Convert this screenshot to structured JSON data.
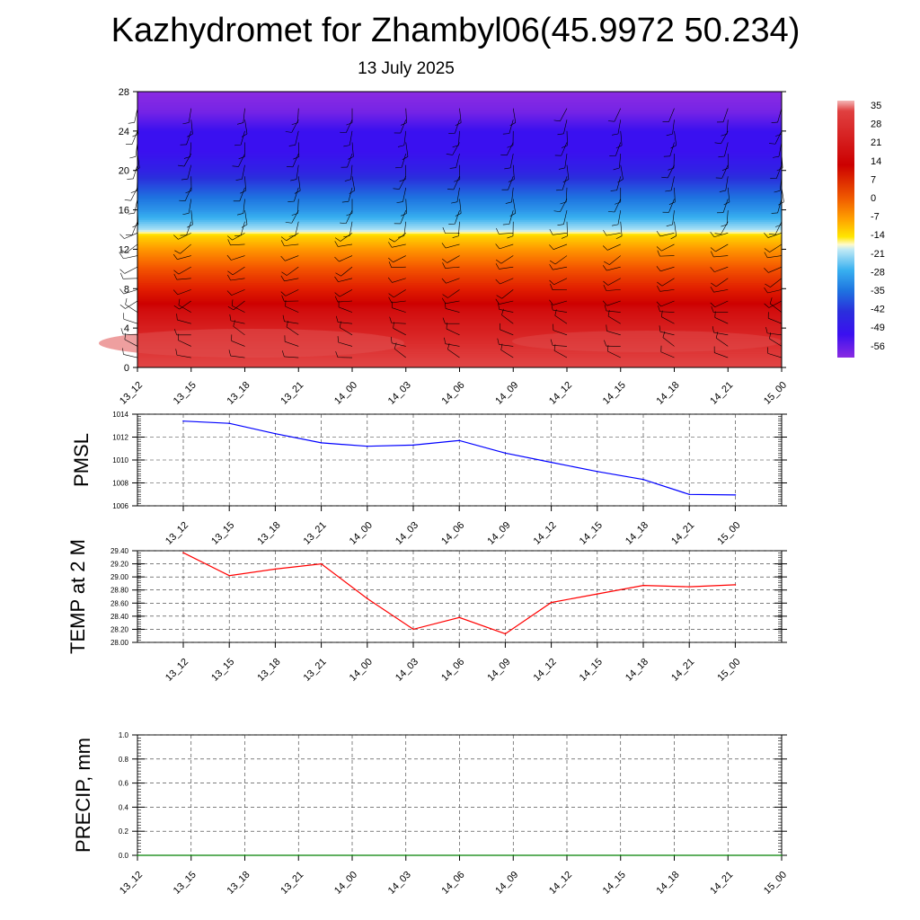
{
  "title": "Kazhydromet for Zhambyl06(45.9972 50.234)",
  "subtitle": "13 July 2025",
  "chart_data": [
    {
      "type": "heatmap",
      "description_role": "temperature profile with wind barbs",
      "x_tick_labels": [
        "13_12",
        "13_15",
        "13_18",
        "13_21",
        "14_00",
        "14_03",
        "14_06",
        "14_09",
        "14_12",
        "14_15",
        "14_18",
        "14_21",
        "15_00"
      ],
      "y_tick_labels": [
        "0",
        "4",
        "8",
        "12",
        "16",
        "20",
        "24",
        "28"
      ],
      "ylim": [
        0,
        28
      ],
      "colorbar": {
        "labels": [
          "35",
          "28",
          "21",
          "14",
          "7",
          "0",
          "-7",
          "-14",
          "-21",
          "-28",
          "-35",
          "-42",
          "-49",
          "-56"
        ],
        "range": [
          -60,
          38
        ]
      },
      "layers": [
        {
          "level": 0,
          "value": 31
        },
        {
          "level": 3,
          "value": 28
        },
        {
          "level": 6,
          "value": 23
        },
        {
          "level": 8,
          "value": 14
        },
        {
          "level": 10,
          "value": 8
        },
        {
          "level": 12,
          "value": 0
        },
        {
          "level": 13.3,
          "value": -10
        },
        {
          "level": 14,
          "value": -22
        },
        {
          "level": 16,
          "value": -32
        },
        {
          "level": 18,
          "value": -40
        },
        {
          "level": 20,
          "value": -48
        },
        {
          "level": 22,
          "value": -52
        },
        {
          "level": 24,
          "value": -52
        },
        {
          "level": 26,
          "value": -58
        },
        {
          "level": 28,
          "value": -60
        }
      ]
    },
    {
      "type": "line",
      "ylabel": "PMSL",
      "categories": [
        "13_12",
        "13_15",
        "13_18",
        "13_21",
        "14_00",
        "14_03",
        "14_06",
        "14_09",
        "14_12",
        "14_15",
        "14_18",
        "14_21",
        "15_00"
      ],
      "y_tick_labels": [
        "1006",
        "1008",
        "1010",
        "1012",
        "1014"
      ],
      "ylim": [
        1006,
        1014
      ],
      "color": "#0000ff",
      "values": [
        1013.4,
        1013.2,
        1012.3,
        1011.5,
        1011.2,
        1011.3,
        1011.7,
        1010.6,
        1009.8,
        1009.0,
        1008.3,
        1007.0,
        1006.95
      ]
    },
    {
      "type": "line",
      "ylabel": "TEMP at 2 M",
      "categories": [
        "13_12",
        "13_15",
        "13_18",
        "13_21",
        "14_00",
        "14_03",
        "14_06",
        "14_09",
        "14_12",
        "14_15",
        "14_18",
        "14_21",
        "15_00"
      ],
      "y_tick_labels": [
        "28.00",
        "28.20",
        "28.40",
        "28.60",
        "28.80",
        "29.00",
        "29.20",
        "29.40"
      ],
      "ylim": [
        28.0,
        29.4
      ],
      "color": "#ff0000",
      "values": [
        29.37,
        29.02,
        29.12,
        29.2,
        28.67,
        28.2,
        28.38,
        28.13,
        28.61,
        28.74,
        28.87,
        28.85,
        28.88
      ]
    },
    {
      "type": "line",
      "ylabel": "PRECIP, mm",
      "categories": [
        "13_12",
        "13_15",
        "13_18",
        "13_21",
        "14_00",
        "14_03",
        "14_06",
        "14_09",
        "14_12",
        "14_15",
        "14_18",
        "14_21",
        "15_00"
      ],
      "y_tick_labels": [
        "0.0",
        "0.2",
        "0.4",
        "0.6",
        "0.8",
        "1.0"
      ],
      "ylim": [
        0,
        1
      ],
      "color": "#008000",
      "values": [
        0,
        0,
        0,
        0,
        0,
        0,
        0,
        0,
        0,
        0,
        0,
        0,
        0
      ]
    }
  ]
}
